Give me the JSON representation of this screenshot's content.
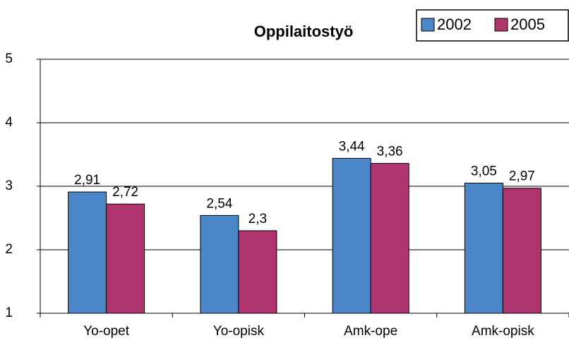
{
  "chart_data": {
    "type": "bar",
    "title": "Oppilaitostyö",
    "categories": [
      "Yo-opet",
      "Yo-opisk",
      "Amk-ope",
      "Amk-opisk"
    ],
    "series": [
      {
        "name": "2002",
        "color": "#4a86c8",
        "values": [
          2.91,
          2.54,
          3.44,
          3.05
        ],
        "value_labels": [
          "2,91",
          "2,54",
          "3,44",
          "3,05"
        ]
      },
      {
        "name": "2005",
        "color": "#b0346e",
        "values": [
          2.72,
          2.3,
          3.36,
          2.97
        ],
        "value_labels": [
          "2,72",
          "2,3",
          "3,36",
          "2,97"
        ]
      }
    ],
    "ylim": [
      1,
      5
    ],
    "yticks": [
      1,
      2,
      3,
      4,
      5
    ],
    "grid": true,
    "legend": "top-right"
  }
}
